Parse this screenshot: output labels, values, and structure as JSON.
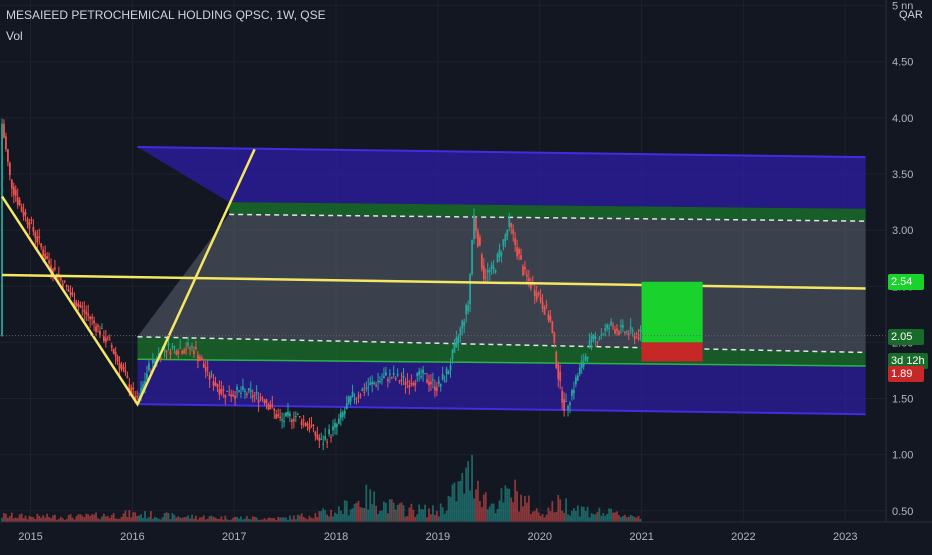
{
  "header": {
    "title": "MESAIEED PETROCHEMICAL HOLDING QPSC, 1W, QSE",
    "indicator": "Vol"
  },
  "currency": "QAR",
  "colors": {
    "background": "#131722",
    "up": "#26a69a",
    "down": "#ef5350",
    "trend_line": "#f5e663",
    "channel_fill": "#2e1ea6",
    "channel_band": "#196b2a",
    "mid_fill": "#5d6470",
    "target_box": "#19d22c",
    "stop_box": "#c62828"
  },
  "chart_data": {
    "type": "candlestick",
    "title": "MESAIEED PETROCHEMICAL HOLDING QPSC, 1W, QSE",
    "x_ticks": [
      "2015",
      "2016",
      "2017",
      "2018",
      "2019",
      "2020",
      "2021",
      "2022",
      "2023"
    ],
    "y_ticks": [
      "5 nn",
      "4.50",
      "4.00",
      "3.50",
      "3.00",
      "2.50",
      "2.00",
      "1.50",
      "1.00",
      "0.50"
    ],
    "y_tick_values": [
      5.0,
      4.5,
      4.0,
      3.5,
      3.0,
      2.5,
      2.0,
      1.5,
      1.0,
      0.5
    ],
    "ylim": [
      0.4,
      5.05
    ],
    "xlim": [
      2014.7,
      2023.4
    ],
    "price_path": [
      [
        2014.72,
        3.95
      ],
      [
        2014.8,
        3.45
      ],
      [
        2014.9,
        3.2
      ],
      [
        2015.0,
        3.05
      ],
      [
        2015.15,
        2.75
      ],
      [
        2015.3,
        2.55
      ],
      [
        2015.45,
        2.35
      ],
      [
        2015.6,
        2.2
      ],
      [
        2015.8,
        1.95
      ],
      [
        2016.0,
        1.55
      ],
      [
        2016.05,
        1.45
      ],
      [
        2016.15,
        1.75
      ],
      [
        2016.3,
        1.95
      ],
      [
        2016.5,
        1.95
      ],
      [
        2016.6,
        1.95
      ],
      [
        2016.75,
        1.7
      ],
      [
        2016.9,
        1.55
      ],
      [
        2017.1,
        1.55
      ],
      [
        2017.3,
        1.5
      ],
      [
        2017.45,
        1.3
      ],
      [
        2017.6,
        1.35
      ],
      [
        2017.75,
        1.25
      ],
      [
        2017.85,
        1.1
      ],
      [
        2018.0,
        1.25
      ],
      [
        2018.15,
        1.5
      ],
      [
        2018.3,
        1.6
      ],
      [
        2018.5,
        1.7
      ],
      [
        2018.7,
        1.65
      ],
      [
        2018.85,
        1.7
      ],
      [
        2019.0,
        1.6
      ],
      [
        2019.1,
        1.75
      ],
      [
        2019.2,
        2.05
      ],
      [
        2019.3,
        2.35
      ],
      [
        2019.35,
        3.15
      ],
      [
        2019.45,
        2.6
      ],
      [
        2019.55,
        2.65
      ],
      [
        2019.7,
        3.05
      ],
      [
        2019.85,
        2.6
      ],
      [
        2020.0,
        2.4
      ],
      [
        2020.1,
        2.2
      ],
      [
        2020.2,
        1.6
      ],
      [
        2020.25,
        1.4
      ],
      [
        2020.35,
        1.65
      ],
      [
        2020.5,
        2.0
      ],
      [
        2020.7,
        2.15
      ],
      [
        2020.8,
        2.1
      ],
      [
        2021.0,
        2.06
      ]
    ],
    "volume_path": [
      [
        2014.72,
        0.12
      ],
      [
        2015.0,
        0.1
      ],
      [
        2015.5,
        0.1
      ],
      [
        2016.0,
        0.15
      ],
      [
        2016.5,
        0.1
      ],
      [
        2017.0,
        0.08
      ],
      [
        2017.5,
        0.07
      ],
      [
        2018.0,
        0.2
      ],
      [
        2018.3,
        0.45
      ],
      [
        2018.6,
        0.25
      ],
      [
        2019.0,
        0.2
      ],
      [
        2019.15,
        0.5
      ],
      [
        2019.35,
        0.95
      ],
      [
        2019.5,
        0.3
      ],
      [
        2019.75,
        0.55
      ],
      [
        2020.0,
        0.15
      ],
      [
        2020.2,
        0.35
      ],
      [
        2020.5,
        0.2
      ],
      [
        2021.0,
        0.1
      ]
    ],
    "price_labels": [
      {
        "label": "2.54",
        "value": 2.54,
        "color": "#19d22c"
      },
      {
        "label": "2.06",
        "value": 2.06,
        "color": "#131722"
      },
      {
        "label": "2.05",
        "value": 2.05,
        "color": "#196b2a"
      },
      {
        "label": "3d 12h",
        "value": 1.83,
        "color": "#196b2a"
      },
      {
        "label": "1.89",
        "value": 1.72,
        "color": "#c62828"
      }
    ],
    "drawings": {
      "channel_top": [
        [
          2016.05,
          3.74
        ],
        [
          2023.2,
          3.65
        ]
      ],
      "upper_band": [
        [
          2016.95,
          3.25
        ],
        [
          2023.2,
          3.19
        ]
      ],
      "upper_dashed": [
        [
          2016.95,
          3.14
        ],
        [
          2023.2,
          3.08
        ]
      ],
      "channel_mid": [
        [
          2016.05,
          2.05
        ],
        [
          2023.2,
          1.91
        ]
      ],
      "lower_band": [
        [
          2016.05,
          1.85
        ],
        [
          2023.2,
          1.79
        ]
      ],
      "channel_bottom": [
        [
          2016.05,
          1.45
        ],
        [
          2023.2,
          1.36
        ]
      ],
      "v_pattern": [
        [
          2014.72,
          3.3
        ],
        [
          2016.05,
          1.45
        ],
        [
          2017.2,
          3.72
        ]
      ],
      "horizontal_trend": [
        [
          2014.72,
          2.6
        ],
        [
          2023.2,
          2.48
        ]
      ],
      "target_box": [
        2021.0,
        2021.6,
        2.54,
        2.0
      ],
      "stop_box": [
        2021.0,
        2021.6,
        2.0,
        1.83
      ]
    }
  }
}
